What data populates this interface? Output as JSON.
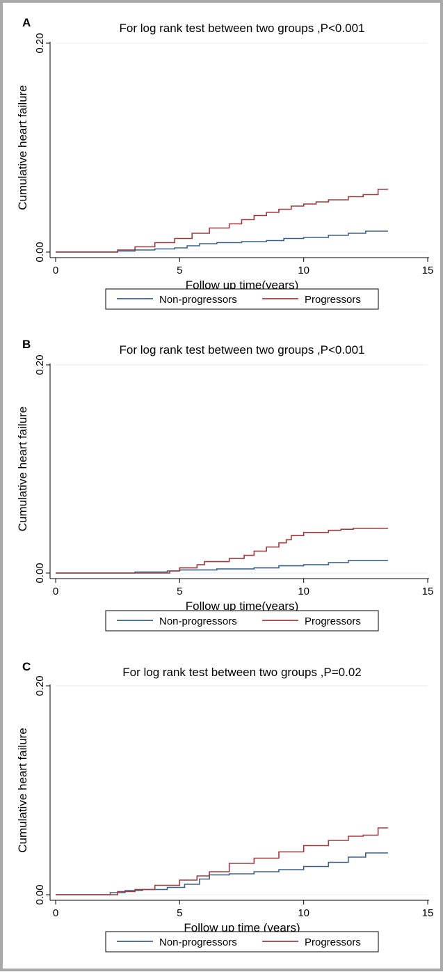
{
  "colors": {
    "non_progressors": "#3a6188",
    "progressors": "#a2393b",
    "gridline": "#e4eef5",
    "axis": "#000000",
    "frame": "#a9a9a9"
  },
  "chart_data": [
    {
      "type": "line",
      "panel_label": "A",
      "title": "For log rank test between two groups ,P<0.001",
      "xlabel": "Follow up time(years)",
      "ylabel": "Cumulative heart failure",
      "xlim": [
        0,
        15
      ],
      "ylim": [
        0,
        0.2
      ],
      "x_ticks": [
        "0",
        "5",
        "10",
        "15"
      ],
      "y_ticks": [
        "0.00",
        "0.20"
      ],
      "y_tick_values": [
        0,
        0.2
      ],
      "x_tick_values": [
        0,
        5,
        10,
        15
      ],
      "grid": true,
      "legend_position": "bottom",
      "series": [
        {
          "name": "Non-progressors",
          "color": "#3a6188",
          "x": [
            0,
            1.8,
            2.5,
            3.2,
            4.0,
            4.8,
            5.3,
            5.8,
            6.5,
            7.5,
            8.5,
            9.2,
            10.0,
            11.0,
            11.8,
            12.5,
            13.4
          ],
          "y": [
            0,
            0,
            0.001,
            0.002,
            0.003,
            0.004,
            0.006,
            0.008,
            0.009,
            0.01,
            0.011,
            0.013,
            0.014,
            0.016,
            0.018,
            0.02,
            0.02
          ]
        },
        {
          "name": "Progressors",
          "color": "#a2393b",
          "x": [
            0,
            1.8,
            2.5,
            3.2,
            4.0,
            4.8,
            5.5,
            6.2,
            7.0,
            7.5,
            8.0,
            8.5,
            9.0,
            9.5,
            10.0,
            10.5,
            11.0,
            11.8,
            12.4,
            12.9,
            13.0,
            13.4
          ],
          "y": [
            0,
            0,
            0.002,
            0.005,
            0.009,
            0.013,
            0.018,
            0.023,
            0.027,
            0.031,
            0.035,
            0.038,
            0.041,
            0.044,
            0.046,
            0.048,
            0.05,
            0.053,
            0.055,
            0.055,
            0.06,
            0.06
          ]
        }
      ]
    },
    {
      "type": "line",
      "panel_label": "B",
      "title": "For log rank test between two groups ,P<0.001",
      "xlabel": "Follow up time(years)",
      "ylabel": "Cumulative heart failure",
      "xlim": [
        0,
        15
      ],
      "ylim": [
        0,
        0.2
      ],
      "x_ticks": [
        "0",
        "5",
        "10",
        "15"
      ],
      "y_ticks": [
        "0.00",
        "0.20"
      ],
      "y_tick_values": [
        0,
        0.2
      ],
      "x_tick_values": [
        0,
        5,
        10,
        15
      ],
      "grid": true,
      "legend_position": "bottom",
      "series": [
        {
          "name": "Non-progressors",
          "color": "#3a6188",
          "x": [
            0,
            2.8,
            3.2,
            4.5,
            5.0,
            6.5,
            8.0,
            9.0,
            10.0,
            11.0,
            11.8,
            13.4
          ],
          "y": [
            0,
            0,
            0.001,
            0.002,
            0.003,
            0.004,
            0.005,
            0.007,
            0.008,
            0.01,
            0.012,
            0.012
          ]
        },
        {
          "name": "Progressors",
          "color": "#a2393b",
          "x": [
            0,
            4.4,
            4.6,
            5.0,
            5.7,
            6.0,
            7.0,
            7.6,
            8.0,
            8.5,
            9.0,
            9.3,
            9.5,
            10.0,
            11.0,
            11.5,
            12.0,
            13.4
          ],
          "y": [
            0,
            0,
            0.002,
            0.005,
            0.008,
            0.011,
            0.014,
            0.017,
            0.021,
            0.025,
            0.029,
            0.032,
            0.036,
            0.039,
            0.041,
            0.042,
            0.043,
            0.043
          ]
        }
      ]
    },
    {
      "type": "line",
      "panel_label": "C",
      "title": "For log rank test between two groups ,P=0.02",
      "xlabel": "Follow up time (years)",
      "ylabel": "Cumulative heart failure",
      "xlim": [
        0,
        15
      ],
      "ylim": [
        0,
        0.2
      ],
      "x_ticks": [
        "0",
        "5",
        "10",
        "15"
      ],
      "y_ticks": [
        "0.00",
        "0.20"
      ],
      "y_tick_values": [
        0,
        0.2
      ],
      "x_tick_values": [
        0,
        5,
        10,
        15
      ],
      "grid": true,
      "legend_position": "bottom",
      "series": [
        {
          "name": "Non-progressors",
          "color": "#3a6188",
          "x": [
            0,
            1.8,
            2.2,
            2.8,
            3.5,
            4.5,
            5.2,
            5.8,
            6.2,
            7.0,
            8.0,
            9.0,
            10.0,
            11.0,
            11.8,
            12.5,
            13.4
          ],
          "y": [
            0,
            0,
            0.002,
            0.004,
            0.005,
            0.007,
            0.01,
            0.015,
            0.019,
            0.02,
            0.022,
            0.024,
            0.027,
            0.031,
            0.036,
            0.04,
            0.04
          ]
        },
        {
          "name": "Progressors",
          "color": "#a2393b",
          "x": [
            0,
            1.8,
            2.5,
            3.2,
            4.0,
            5.0,
            5.7,
            6.2,
            7.0,
            8.0,
            9.0,
            10.0,
            11.0,
            11.8,
            12.4,
            12.9,
            13.0,
            13.4
          ],
          "y": [
            0,
            0,
            0.003,
            0.005,
            0.009,
            0.014,
            0.018,
            0.022,
            0.03,
            0.035,
            0.041,
            0.047,
            0.052,
            0.056,
            0.057,
            0.057,
            0.064,
            0.064
          ]
        }
      ]
    }
  ]
}
